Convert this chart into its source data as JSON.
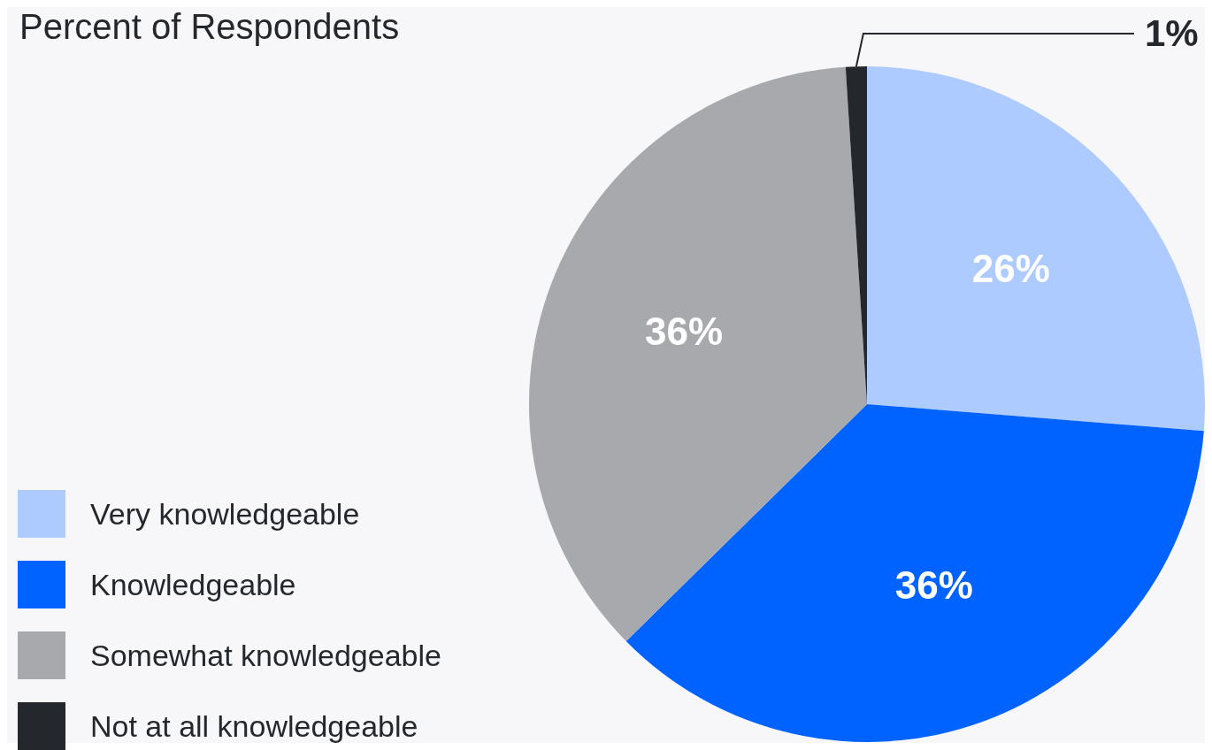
{
  "chart_data": {
    "type": "pie",
    "title": "Percent of Respondents",
    "categories": [
      "Very knowledgeable",
      "Knowledgeable",
      "Somewhat knowledgeable",
      "Not at all knowledgeable"
    ],
    "values": [
      26,
      36,
      36,
      1
    ],
    "value_labels": [
      "26%",
      "36%",
      "36%",
      "1%"
    ],
    "colors": [
      "#adcbff",
      "#0062ff",
      "#a8a9ad",
      "#24272b"
    ],
    "legend": "bottom left"
  }
}
